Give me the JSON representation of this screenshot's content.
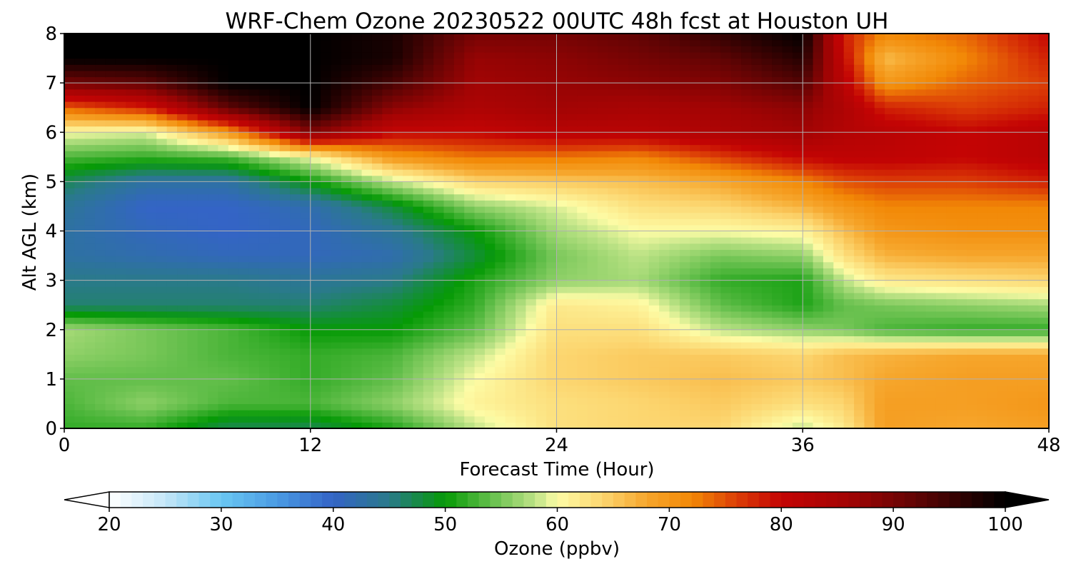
{
  "chart_data": {
    "type": "heatmap",
    "title": "WRF-Chem Ozone  20230522 00UTC 48h fcst at Houston UH",
    "xlabel": "Forecast Time (Hour)",
    "ylabel": "Alt AGL (km)",
    "xlim": [
      0,
      48
    ],
    "ylim": [
      0,
      8
    ],
    "xticks": [
      0,
      12,
      24,
      36,
      48
    ],
    "yticks": [
      0,
      1,
      2,
      3,
      4,
      5,
      6,
      7,
      8
    ],
    "grid": true,
    "colorbar": {
      "label": "Ozone  (ppbv)",
      "orientation": "horizontal",
      "placement": "bottom",
      "min": 20,
      "max": 100,
      "ticks": [
        20,
        30,
        40,
        50,
        60,
        70,
        80,
        90,
        100
      ],
      "extend": "both",
      "stops": [
        {
          "value": 20,
          "color": "#ffffff"
        },
        {
          "value": 25,
          "color": "#c4e6f8"
        },
        {
          "value": 30,
          "color": "#6ac7f2"
        },
        {
          "value": 35,
          "color": "#4a9ae4"
        },
        {
          "value": 40,
          "color": "#3464c6"
        },
        {
          "value": 45,
          "color": "#2a7a8a"
        },
        {
          "value": 50,
          "color": "#069a06"
        },
        {
          "value": 54,
          "color": "#62be4a"
        },
        {
          "value": 58,
          "color": "#bde386"
        },
        {
          "value": 60,
          "color": "#fdfca6"
        },
        {
          "value": 64,
          "color": "#fcd670"
        },
        {
          "value": 68,
          "color": "#f6a62c"
        },
        {
          "value": 72,
          "color": "#f28806"
        },
        {
          "value": 76,
          "color": "#dc3e06"
        },
        {
          "value": 80,
          "color": "#c40404"
        },
        {
          "value": 86,
          "color": "#a20404"
        },
        {
          "value": 92,
          "color": "#600404"
        },
        {
          "value": 100,
          "color": "#000000"
        }
      ]
    },
    "x_hours": [
      0,
      4,
      8,
      12,
      16,
      20,
      24,
      28,
      32,
      36,
      38,
      40,
      44,
      48
    ],
    "y_km": [
      0,
      0.5,
      1,
      1.5,
      2,
      2.5,
      3,
      3.5,
      4,
      4.5,
      5,
      5.5,
      6,
      6.5,
      7,
      7.5,
      8
    ],
    "values_ppbv": [
      [
        52,
        52,
        47,
        47,
        51,
        58,
        63,
        64,
        64,
        58,
        62,
        69,
        68,
        69
      ],
      [
        53,
        56,
        53,
        53,
        56,
        61,
        63,
        64,
        65,
        63,
        64,
        69,
        69,
        70
      ],
      [
        54,
        54,
        54,
        52,
        54,
        60,
        64,
        65,
        66,
        65,
        66,
        68,
        69,
        69
      ],
      [
        56,
        55,
        53,
        52,
        53,
        58,
        64,
        65,
        65,
        64,
        66,
        67,
        68,
        68
      ],
      [
        57,
        55,
        53,
        50,
        50,
        54,
        63,
        63,
        58,
        56,
        55,
        53,
        52,
        52
      ],
      [
        46,
        46,
        46,
        46,
        48,
        52,
        62,
        61,
        54,
        51,
        54,
        55,
        56,
        57
      ],
      [
        45,
        45,
        45,
        44,
        45,
        51,
        56,
        57,
        52,
        51,
        58,
        62,
        63,
        64
      ],
      [
        43,
        42,
        41,
        41,
        42,
        48,
        55,
        58,
        55,
        56,
        63,
        67,
        68,
        68
      ],
      [
        43,
        41,
        40,
        41,
        44,
        50,
        57,
        60,
        60,
        61,
        66,
        70,
        71,
        71
      ],
      [
        44,
        40,
        40,
        42,
        48,
        56,
        59,
        63,
        64,
        67,
        70,
        72,
        72,
        72
      ],
      [
        47,
        43,
        43,
        50,
        58,
        64,
        65,
        66,
        68,
        72,
        75,
        76,
        76,
        78
      ],
      [
        53,
        52,
        53,
        60,
        70,
        73,
        73,
        72,
        76,
        80,
        81,
        81,
        80,
        82
      ],
      [
        60,
        59,
        70,
        89,
        80,
        80,
        82,
        82,
        84,
        86,
        83,
        82,
        80,
        82
      ],
      [
        74,
        78,
        92,
        100,
        88,
        84,
        86,
        85,
        86,
        88,
        84,
        78,
        76,
        78
      ],
      [
        90,
        92,
        100,
        100,
        94,
        86,
        87,
        88,
        89,
        93,
        82,
        70,
        74,
        76
      ],
      [
        100,
        100,
        100,
        100,
        98,
        87,
        88,
        90,
        92,
        97,
        80,
        66,
        72,
        78
      ],
      [
        100,
        100,
        100,
        100,
        98,
        90,
        90,
        92,
        96,
        100,
        78,
        72,
        74,
        80
      ]
    ]
  }
}
